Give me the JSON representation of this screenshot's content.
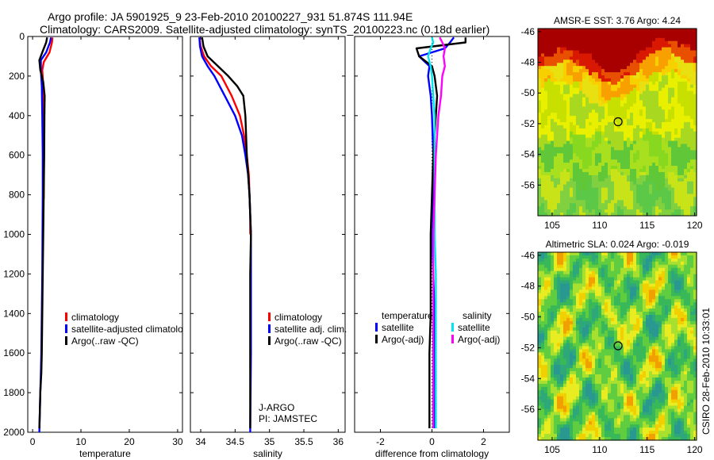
{
  "header": {
    "line1": "Argo profile: JA 5901925_9 23-Feb-2010 20100227_931 51.874S 111.94E",
    "line2": "Climatology: CARS2009. Satellite-adjusted climatology: synTS_20100223.nc (0.18d earlier)"
  },
  "colors": {
    "climatology": "#ff0000",
    "satellite": "#0000ff",
    "argo": "#000000",
    "satellite_salinity": "#00e5ee",
    "argo_salinity": "#ff00ff"
  },
  "chart_data": [
    {
      "type": "line",
      "xlabel": "temperature",
      "ylabel": "",
      "xlim": [
        -1,
        31
      ],
      "ylim": [
        2000,
        0
      ],
      "y_reversed": true,
      "xticks": [
        0,
        10,
        20,
        30
      ],
      "yticks": [
        0,
        200,
        400,
        600,
        800,
        1000,
        1200,
        1400,
        1600,
        1800,
        2000
      ],
      "legend": [
        {
          "label": "climatology",
          "color": "#ff0000"
        },
        {
          "label": "satellite-adjusted climatolog",
          "color": "#0000ff"
        },
        {
          "label": "Argo(..raw -QC)",
          "color": "#000000"
        }
      ],
      "series": [
        {
          "name": "climatology",
          "color": "#ff0000",
          "x": [
            4.1,
            4.0,
            3.5,
            2.3,
            2.0,
            2.2,
            2.3,
            2.35,
            2.3,
            2.3
          ],
          "y": [
            5,
            30,
            80,
            130,
            170,
            250,
            400,
            600,
            800,
            820
          ]
        },
        {
          "name": "satellite-adjusted climatolog",
          "color": "#0000ff",
          "x": [
            3.8,
            3.6,
            2.8,
            1.7,
            1.7,
            1.9,
            2.0,
            2.1,
            2.1,
            2.05,
            2.0,
            1.9,
            1.8,
            1.7,
            1.6,
            1.5,
            1.4
          ],
          "y": [
            5,
            30,
            80,
            120,
            170,
            250,
            400,
            600,
            800,
            1000,
            1200,
            1400,
            1600,
            1700,
            1800,
            1900,
            2000
          ]
        },
        {
          "name": "Argo(..raw -QC)",
          "color": "#000000",
          "x": [
            3.0,
            2.8,
            2.0,
            1.4,
            1.6,
            2.2,
            2.5,
            2.45,
            2.4,
            2.3,
            2.2,
            2.1,
            2.0,
            1.9,
            1.8,
            1.6,
            1.5,
            1.4
          ],
          "y": [
            5,
            30,
            80,
            120,
            170,
            230,
            300,
            400,
            600,
            800,
            1000,
            1200,
            1400,
            1600,
            1700,
            1800,
            1900,
            1980
          ]
        }
      ]
    },
    {
      "type": "line",
      "xlabel": "salinity",
      "ylabel": "",
      "xlim": [
        33.85,
        36.1
      ],
      "ylim": [
        2000,
        0
      ],
      "y_reversed": true,
      "xticks": [
        34,
        34.5,
        35,
        35.5,
        36
      ],
      "xtick_labels": [
        "34",
        "34.5",
        "35",
        "35.5",
        "36"
      ],
      "legend": [
        {
          "label": "climatology",
          "color": "#ff0000"
        },
        {
          "label": "satellite adj. clim.",
          "color": "#0000ff"
        },
        {
          "label": "Argo(..raw -QC)",
          "color": "#000000"
        }
      ],
      "annotations": [
        "J-ARGO",
        "PI: JAMSTEC"
      ],
      "series": [
        {
          "name": "climatology",
          "color": "#ff0000",
          "x": [
            33.98,
            34.0,
            34.05,
            34.15,
            34.3,
            34.45,
            34.57,
            34.63,
            34.67,
            34.7,
            34.71,
            34.72,
            34.72
          ],
          "y": [
            5,
            50,
            100,
            150,
            200,
            300,
            400,
            500,
            600,
            700,
            800,
            900,
            1000
          ]
        },
        {
          "name": "satellite adj. clim.",
          "color": "#0000ff",
          "x": [
            33.98,
            33.99,
            34.02,
            34.1,
            34.2,
            34.35,
            34.5,
            34.6,
            34.65,
            34.69,
            34.71,
            34.72,
            34.73,
            34.73,
            34.73,
            34.73,
            34.72
          ],
          "y": [
            5,
            50,
            100,
            150,
            200,
            300,
            400,
            500,
            600,
            700,
            800,
            900,
            1000,
            1200,
            1400,
            1600,
            2000
          ]
        },
        {
          "name": "Argo(..raw -QC)",
          "color": "#000000",
          "x": [
            34.02,
            34.04,
            34.1,
            34.25,
            34.4,
            34.53,
            34.62,
            34.65,
            34.66,
            34.67,
            34.69,
            34.71,
            34.72,
            34.73,
            34.72,
            34.72,
            34.72
          ],
          "y": [
            5,
            50,
            100,
            150,
            200,
            250,
            300,
            400,
            500,
            600,
            700,
            800,
            900,
            1000,
            1200,
            1600,
            1980
          ]
        }
      ]
    },
    {
      "type": "line",
      "xlabel": "difference from climatology",
      "ylabel": "",
      "xlim": [
        -3,
        3
      ],
      "ylim": [
        2000,
        0
      ],
      "y_reversed": true,
      "xticks": [
        -2,
        0,
        2
      ],
      "legend_headers": [
        "temperature",
        "salinity"
      ],
      "legend": [
        {
          "label": "satellite",
          "color": "#0000ff"
        },
        {
          "label": "Argo(-adj)",
          "color": "#000000"
        },
        {
          "label": "satellite",
          "color": "#00e5ee"
        },
        {
          "label": "Argo(-adj)",
          "color": "#ff00ff"
        }
      ],
      "series": [
        {
          "name": "temperature satellite",
          "color": "#0000ff",
          "x": [
            0.85,
            0.7,
            0.5,
            -0.5,
            -0.1,
            -0.15,
            -0.05,
            0.0,
            0.05,
            0.05,
            0.0,
            0.05,
            0.1,
            0.1,
            0.12,
            0.1
          ],
          "y": [
            5,
            30,
            60,
            100,
            150,
            200,
            300,
            400,
            600,
            800,
            1000,
            1200,
            1400,
            1600,
            1800,
            1980
          ]
        },
        {
          "name": "temperature Argo(-adj)",
          "color": "#000000",
          "x": [
            1.3,
            1.3,
            -0.6,
            -0.5,
            0.0,
            0.1,
            0.2,
            0.15,
            0.05,
            0.0,
            -0.05,
            -0.05,
            -0.05,
            -0.1,
            -0.1,
            -0.1
          ],
          "y": [
            5,
            30,
            60,
            100,
            150,
            200,
            300,
            400,
            600,
            800,
            1000,
            1200,
            1400,
            1600,
            1800,
            1980
          ]
        },
        {
          "name": "salinity satellite",
          "color": "#00e5ee",
          "x": [
            0.0,
            0.05,
            -0.05,
            -0.15,
            -0.05,
            0.0,
            0.05,
            0.1,
            0.1,
            0.1,
            0.1,
            0.15,
            0.15,
            0.15,
            0.15,
            0.15
          ],
          "y": [
            5,
            30,
            60,
            100,
            150,
            200,
            300,
            400,
            600,
            800,
            1000,
            1200,
            1400,
            1600,
            1800,
            1980
          ]
        },
        {
          "name": "salinity Argo(-adj)",
          "color": "#ff00ff",
          "x": [
            0.3,
            0.4,
            0.5,
            0.45,
            0.5,
            0.4,
            0.35,
            0.25,
            0.15,
            0.1,
            0.05,
            0.05,
            0.05,
            0.05,
            0.05,
            0.05
          ],
          "y": [
            5,
            30,
            60,
            100,
            150,
            200,
            300,
            400,
            600,
            800,
            1000,
            1200,
            1400,
            1600,
            1800,
            1980
          ]
        }
      ]
    },
    {
      "type": "heatmap",
      "title": "AMSR-E SST: 3.76 Argo: 4.24",
      "xlim": [
        103.5,
        120.2
      ],
      "ylim": [
        -58,
        -45.8
      ],
      "xticks": [
        105,
        110,
        115,
        120
      ],
      "yticks": [
        -46,
        -48,
        -50,
        -52,
        -54,
        -56
      ],
      "marker": {
        "x": 111.94,
        "y": -51.874
      },
      "colormap": "sst"
    },
    {
      "type": "heatmap",
      "title": "Altimetric SLA: 0.024 Argo: -0.019",
      "xlim": [
        103.5,
        120.2
      ],
      "ylim": [
        -58,
        -45.8
      ],
      "xticks": [
        105,
        110,
        115,
        120
      ],
      "yticks": [
        -46,
        -48,
        -50,
        -52,
        -54,
        -56
      ],
      "marker": {
        "x": 111.94,
        "y": -51.874
      },
      "colormap": "sla"
    }
  ],
  "footer": {
    "credit": "CSIRO 28-Feb-2010 10:33:01"
  }
}
